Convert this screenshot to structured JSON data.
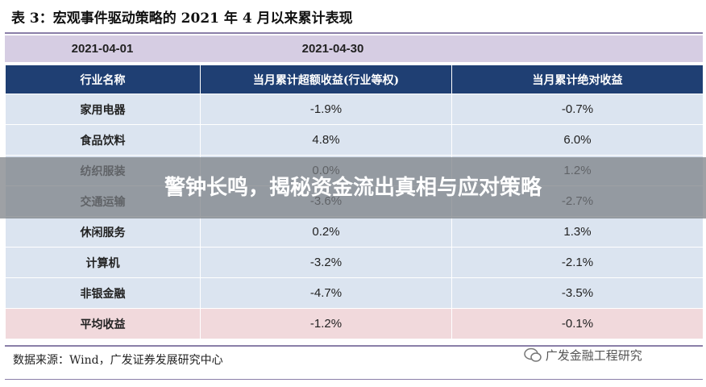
{
  "header": {
    "title": "表 3：宏观事件驱动策略的 2021 年 4 月以来累计表现"
  },
  "dates": [
    "2021-04-01",
    "2021-04-30"
  ],
  "table": {
    "columns": [
      "行业名称",
      "当月累计超额收益(行业等权)",
      "当月累计绝对收益"
    ],
    "rows": [
      [
        "家用电器",
        "-1.9%",
        "-0.7%"
      ],
      [
        "食品饮料",
        "4.8%",
        "6.0%"
      ],
      [
        "纺织服装",
        "0.0%",
        "1.2%"
      ],
      [
        "交通运输",
        "-3.6%",
        "-2.7%"
      ],
      [
        "休闲服务",
        "0.2%",
        "1.3%"
      ],
      [
        "计算机",
        "-3.2%",
        "-2.1%"
      ],
      [
        "非银金融",
        "-4.7%",
        "-3.5%"
      ],
      [
        "平均收益",
        "-1.2%",
        "-0.1%"
      ]
    ]
  },
  "source": "数据来源：Wind，广发证券发展研究中心",
  "watermark": "广发金融工程研究",
  "banner": "警钟长鸣，揭秘资金流出真相与应对策略"
}
